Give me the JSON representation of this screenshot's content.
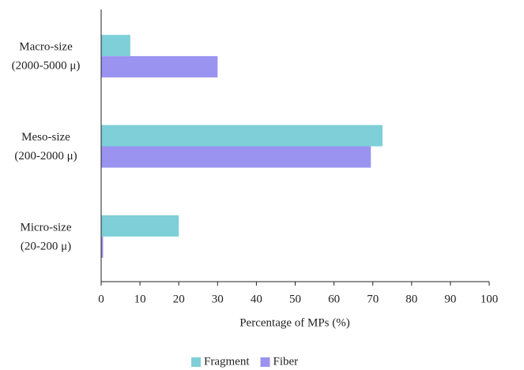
{
  "chart_data": {
    "type": "hbar",
    "categories": [
      [
        "Macro-size",
        "(2000-5000 μ)"
      ],
      [
        "Meso-size",
        "(200-2000 μ)"
      ],
      [
        "Micro-size",
        "(20-200 μ)"
      ]
    ],
    "series": [
      {
        "name": "Fragment",
        "color": "#7ecfd8",
        "values": [
          7.5,
          72.5,
          20
        ]
      },
      {
        "name": "Fiber",
        "color": "#9b93f0",
        "values": [
          30,
          69.5,
          0.5
        ]
      }
    ],
    "x_label": "Percentage of MPs (%)",
    "xlim": [
      0,
      100
    ],
    "xticks": [
      0,
      10,
      20,
      30,
      40,
      50,
      60,
      70,
      80,
      90,
      100
    ],
    "legend": "bottom"
  }
}
